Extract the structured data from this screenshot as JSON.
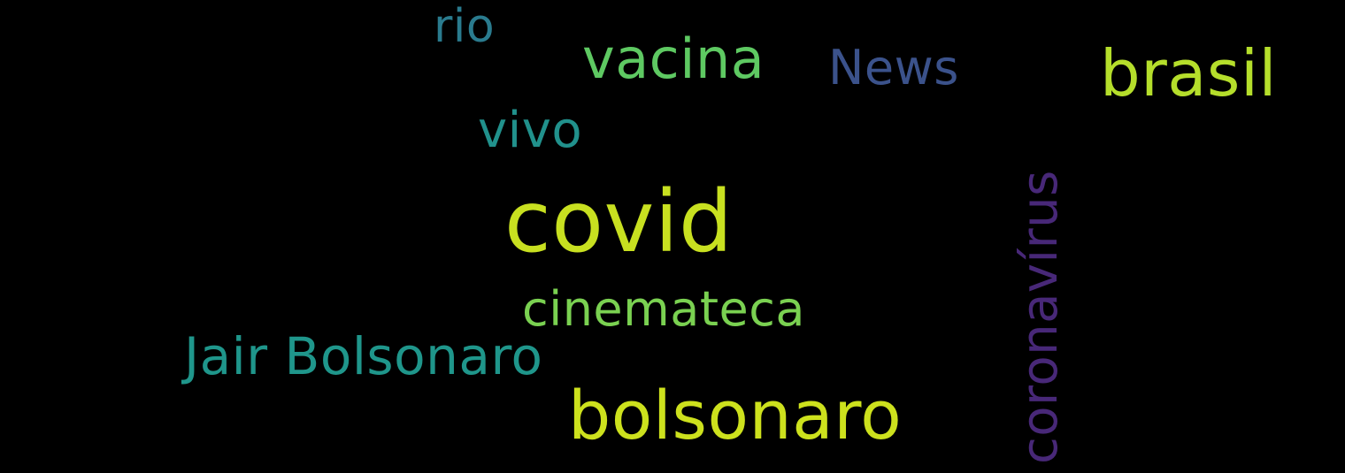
{
  "words": [
    {
      "text": "rio",
      "color": "#2a7b8e"
    },
    {
      "text": "vacina",
      "color": "#5ec962"
    },
    {
      "text": "News",
      "color": "#3b528b"
    },
    {
      "text": "brasil",
      "color": "#b5de2b"
    },
    {
      "text": "vivo",
      "color": "#21918c"
    },
    {
      "text": "covid",
      "color": "#c8e020"
    },
    {
      "text": "cinemateca",
      "color": "#7ad151"
    },
    {
      "text": "Jair Bolsonaro",
      "color": "#1f968b"
    },
    {
      "text": "bolsonaro",
      "color": "#cde11d"
    },
    {
      "text": "coronavírus",
      "color": "#482878"
    }
  ]
}
